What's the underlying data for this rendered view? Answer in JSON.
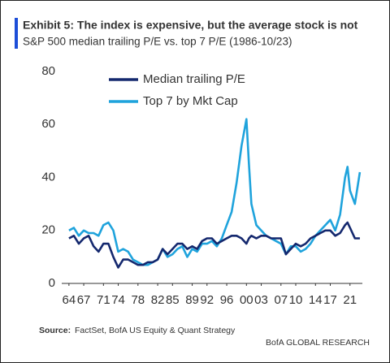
{
  "chart_data": {
    "type": "line",
    "title": "Exhibit 5: The index is expensive, but the average stock is not",
    "subtitle": "S&P 500 median trailing P/E vs. top 7 P/E (1986-10/23)",
    "source_label": "Source:",
    "source": "FactSet, BofA US Equity & Quant Strategy",
    "footer": "BofA GLOBAL RESEARCH",
    "x": [
      1964,
      1965,
      1966,
      1967,
      1968,
      1969,
      1970,
      1971,
      1972,
      1973,
      1974,
      1975,
      1976,
      1977,
      1978,
      1979,
      1980,
      1981,
      1982,
      1983,
      1984,
      1985,
      1986,
      1987,
      1988,
      1989,
      1990,
      1991,
      1992,
      1993,
      1994,
      1995,
      1996,
      1997,
      1998,
      1999,
      2000,
      2000.5,
      2001,
      2002,
      2003,
      2004,
      2005,
      2006,
      2007,
      2008,
      2009,
      2010,
      2011,
      2012,
      2013,
      2014,
      2015,
      2016,
      2017,
      2018,
      2019,
      2020,
      2020.5,
      2021,
      2022,
      2023
    ],
    "series": [
      {
        "name": "Median trailing P/E",
        "color": "#14286e",
        "values": [
          17,
          18,
          15,
          17,
          18,
          14,
          12,
          15,
          15,
          10,
          6,
          9,
          9,
          8,
          7,
          7,
          8,
          8,
          9,
          13,
          11,
          13,
          15,
          15,
          13,
          14,
          13,
          16,
          17,
          17,
          15,
          16,
          17,
          18,
          18,
          17,
          15,
          17,
          18,
          17,
          18,
          18,
          17,
          17,
          17,
          11,
          13,
          15,
          14,
          15,
          17,
          18,
          19,
          20,
          20,
          18,
          19,
          22,
          23,
          21,
          17,
          17
        ]
      },
      {
        "name": "Top 7 by Mkt Cap",
        "color": "#1fa3dc",
        "values": [
          20,
          21,
          18,
          20,
          19,
          19,
          18,
          22,
          23,
          20,
          12,
          13,
          12,
          9,
          8,
          7,
          7,
          8,
          9,
          13,
          10,
          11,
          13,
          14,
          10,
          13,
          12,
          15,
          15,
          16,
          14,
          17,
          22,
          27,
          38,
          52,
          62,
          45,
          30,
          22,
          20,
          18,
          17,
          16,
          15,
          11,
          14,
          14,
          12,
          13,
          15,
          18,
          20,
          22,
          24,
          20,
          26,
          40,
          44,
          35,
          30,
          42
        ]
      }
    ],
    "xlim": [
      1963.2,
      2024.5
    ],
    "xticks": [
      {
        "value": 1964,
        "label": "64"
      },
      {
        "value": 1967,
        "label": "67"
      },
      {
        "value": 1971,
        "label": "71"
      },
      {
        "value": 1974,
        "label": "74"
      },
      {
        "value": 1978,
        "label": "78"
      },
      {
        "value": 1982,
        "label": "82"
      },
      {
        "value": 1985,
        "label": "85"
      },
      {
        "value": 1989,
        "label": "89"
      },
      {
        "value": 1992,
        "label": "92"
      },
      {
        "value": 1996,
        "label": "96"
      },
      {
        "value": 2000,
        "label": "00"
      },
      {
        "value": 2003,
        "label": "03"
      },
      {
        "value": 2007,
        "label": "07"
      },
      {
        "value": 2010,
        "label": "10"
      },
      {
        "value": 2014,
        "label": "14"
      },
      {
        "value": 2017,
        "label": "17"
      },
      {
        "value": 2021,
        "label": "21"
      }
    ],
    "ylim": [
      0,
      80
    ],
    "yticks": [
      0,
      20,
      40,
      60,
      80
    ],
    "grid": false,
    "legend": "top-left"
  }
}
